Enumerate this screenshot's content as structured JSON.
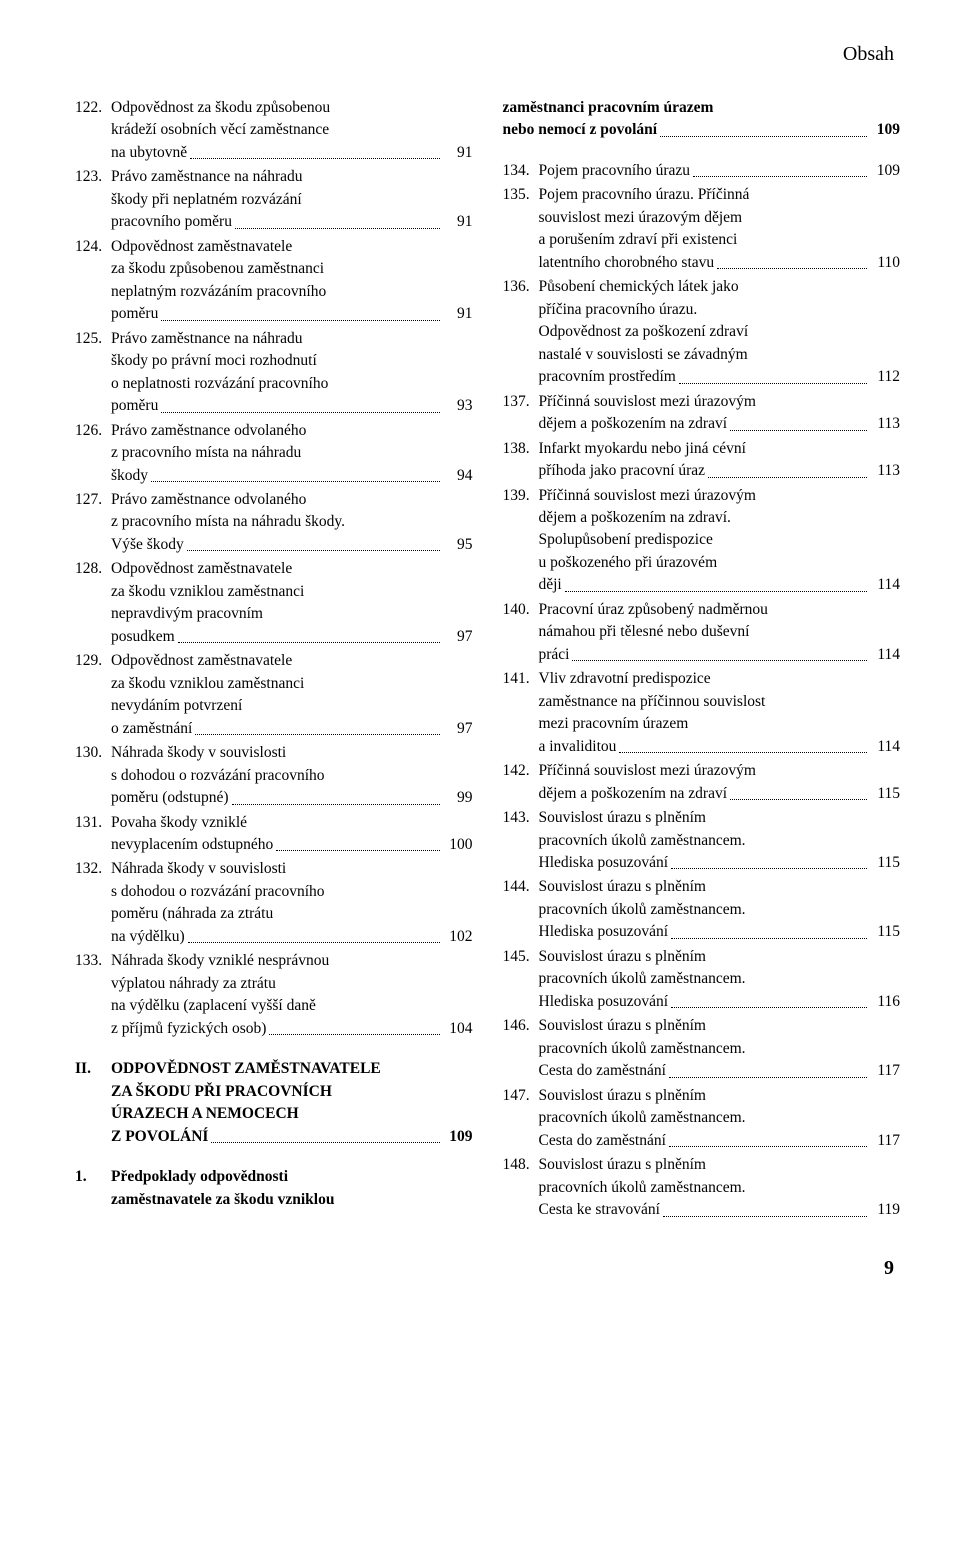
{
  "header": "Obsah",
  "pageNumber": "9",
  "leftColumn": [
    {
      "num": "122.",
      "lines": [
        "Odpovědnost za škodu způsobenou",
        "krádeží osobních věcí zaměstnance",
        "na ubytovně"
      ],
      "page": "91"
    },
    {
      "num": "123.",
      "lines": [
        "Právo zaměstnance na náhradu",
        "škody při neplatném rozvázání",
        "pracovního poměru"
      ],
      "page": "91"
    },
    {
      "num": "124.",
      "lines": [
        "Odpovědnost zaměstnavatele",
        "za škodu způsobenou zaměstnanci",
        "neplatným rozvázáním pracovního",
        "poměru"
      ],
      "page": "91"
    },
    {
      "num": "125.",
      "lines": [
        "Právo zaměstnance na náhradu",
        "škody po právní moci rozhodnutí",
        "o neplatnosti rozvázání pracovního",
        "poměru"
      ],
      "page": "93"
    },
    {
      "num": "126.",
      "lines": [
        "Právo zaměstnance odvolaného",
        "z pracovního místa na náhradu",
        "škody"
      ],
      "page": "94"
    },
    {
      "num": "127.",
      "lines": [
        "Právo zaměstnance odvolaného",
        "z pracovního místa na náhradu škody.",
        "Výše škody"
      ],
      "page": "95"
    },
    {
      "num": "128.",
      "lines": [
        "Odpovědnost zaměstnavatele",
        "za škodu vzniklou zaměstnanci",
        "nepravdivým pracovním",
        "posudkem"
      ],
      "page": "97"
    },
    {
      "num": "129.",
      "lines": [
        "Odpovědnost zaměstnavatele",
        "za škodu vzniklou zaměstnanci",
        "nevydáním potvrzení",
        "o zaměstnání"
      ],
      "page": "97"
    },
    {
      "num": "130.",
      "lines": [
        "Náhrada škody v souvislosti",
        "s dohodou o rozvázání pracovního",
        "poměru (odstupné)"
      ],
      "page": "99"
    },
    {
      "num": "131.",
      "lines": [
        "Povaha škody vzniklé",
        "nevyplacením odstupného"
      ],
      "page": "100"
    },
    {
      "num": "132.",
      "lines": [
        "Náhrada škody v souvislosti",
        "s dohodou o rozvázání pracovního",
        "poměru (náhrada za ztrátu",
        "na výdělku)"
      ],
      "page": "102"
    },
    {
      "num": "133.",
      "lines": [
        "Náhrada škody vzniklé nesprávnou",
        "výplatou náhrady za ztrátu",
        "na výdělku (zaplacení vyšší daně",
        "z příjmů fyzických osob)"
      ],
      "page": "104"
    }
  ],
  "leftSection": {
    "num": "II.",
    "lines": [
      "ODPOVĚDNOST ZAMĚSTNAVATELE",
      "ZA ŠKODU PŘI PRACOVNÍCH",
      "ÚRAZECH A NEMOCECH",
      "Z POVOLÁNÍ"
    ],
    "page": "109"
  },
  "leftSub": {
    "num": "1.",
    "lines": [
      "Předpoklady odpovědnosti",
      "zaměstnavatele za škodu vzniklou"
    ]
  },
  "rightContinuation": {
    "lines": [
      "zaměstnanci pracovním úrazem",
      "nebo nemocí z povolání"
    ],
    "page": "109"
  },
  "rightColumn": [
    {
      "num": "134.",
      "lines": [
        "Pojem pracovního úrazu"
      ],
      "page": "109"
    },
    {
      "num": "135.",
      "lines": [
        "Pojem pracovního úrazu. Příčinná",
        "souvislost mezi úrazovým dějem",
        "a porušením zdraví při existenci",
        "latentního chorobného stavu"
      ],
      "page": "110"
    },
    {
      "num": "136.",
      "lines": [
        "Působení chemických látek jako",
        "příčina pracovního úrazu.",
        "Odpovědnost za poškození zdraví",
        "nastalé v souvislosti se závadným",
        "pracovním prostředím"
      ],
      "page": "112"
    },
    {
      "num": "137.",
      "lines": [
        "Příčinná souvislost mezi úrazovým",
        "dějem a poškozením na zdraví"
      ],
      "page": "113"
    },
    {
      "num": "138.",
      "lines": [
        "Infarkt myokardu nebo jiná cévní",
        "příhoda jako pracovní úraz"
      ],
      "page": "113"
    },
    {
      "num": "139.",
      "lines": [
        "Příčinná souvislost mezi úrazovým",
        "dějem a poškozením na zdraví.",
        "Spolupůsobení predispozice",
        "u poškozeného při úrazovém",
        "ději"
      ],
      "page": "114"
    },
    {
      "num": "140.",
      "lines": [
        "Pracovní úraz způsobený nadměrnou",
        "námahou při tělesné nebo duševní",
        "práci"
      ],
      "page": "114"
    },
    {
      "num": "141.",
      "lines": [
        "Vliv zdravotní predispozice",
        "zaměstnance na příčinnou souvislost",
        "mezi pracovním úrazem",
        "a invaliditou"
      ],
      "page": "114"
    },
    {
      "num": "142.",
      "lines": [
        "Příčinná souvislost mezi úrazovým",
        "dějem a poškozením na zdraví"
      ],
      "page": "115"
    },
    {
      "num": "143.",
      "lines": [
        "Souvislost úrazu s plněním",
        "pracovních úkolů zaměstnancem.",
        "Hlediska posuzování"
      ],
      "page": "115"
    },
    {
      "num": "144.",
      "lines": [
        "Souvislost úrazu s plněním",
        "pracovních úkolů zaměstnancem.",
        "Hlediska posuzování"
      ],
      "page": "115"
    },
    {
      "num": "145.",
      "lines": [
        "Souvislost úrazu s plněním",
        "pracovních úkolů zaměstnancem.",
        "Hlediska posuzování"
      ],
      "page": "116"
    },
    {
      "num": "146.",
      "lines": [
        "Souvislost úrazu s plněním",
        "pracovních úkolů zaměstnancem.",
        "Cesta do zaměstnání"
      ],
      "page": "117"
    },
    {
      "num": "147.",
      "lines": [
        "Souvislost úrazu s plněním",
        "pracovních úkolů zaměstnancem.",
        "Cesta do zaměstnání"
      ],
      "page": "117"
    },
    {
      "num": "148.",
      "lines": [
        "Souvislost úrazu s plněním",
        "pracovních úkolů zaměstnancem.",
        "Cesta ke stravování"
      ],
      "page": "119"
    }
  ]
}
